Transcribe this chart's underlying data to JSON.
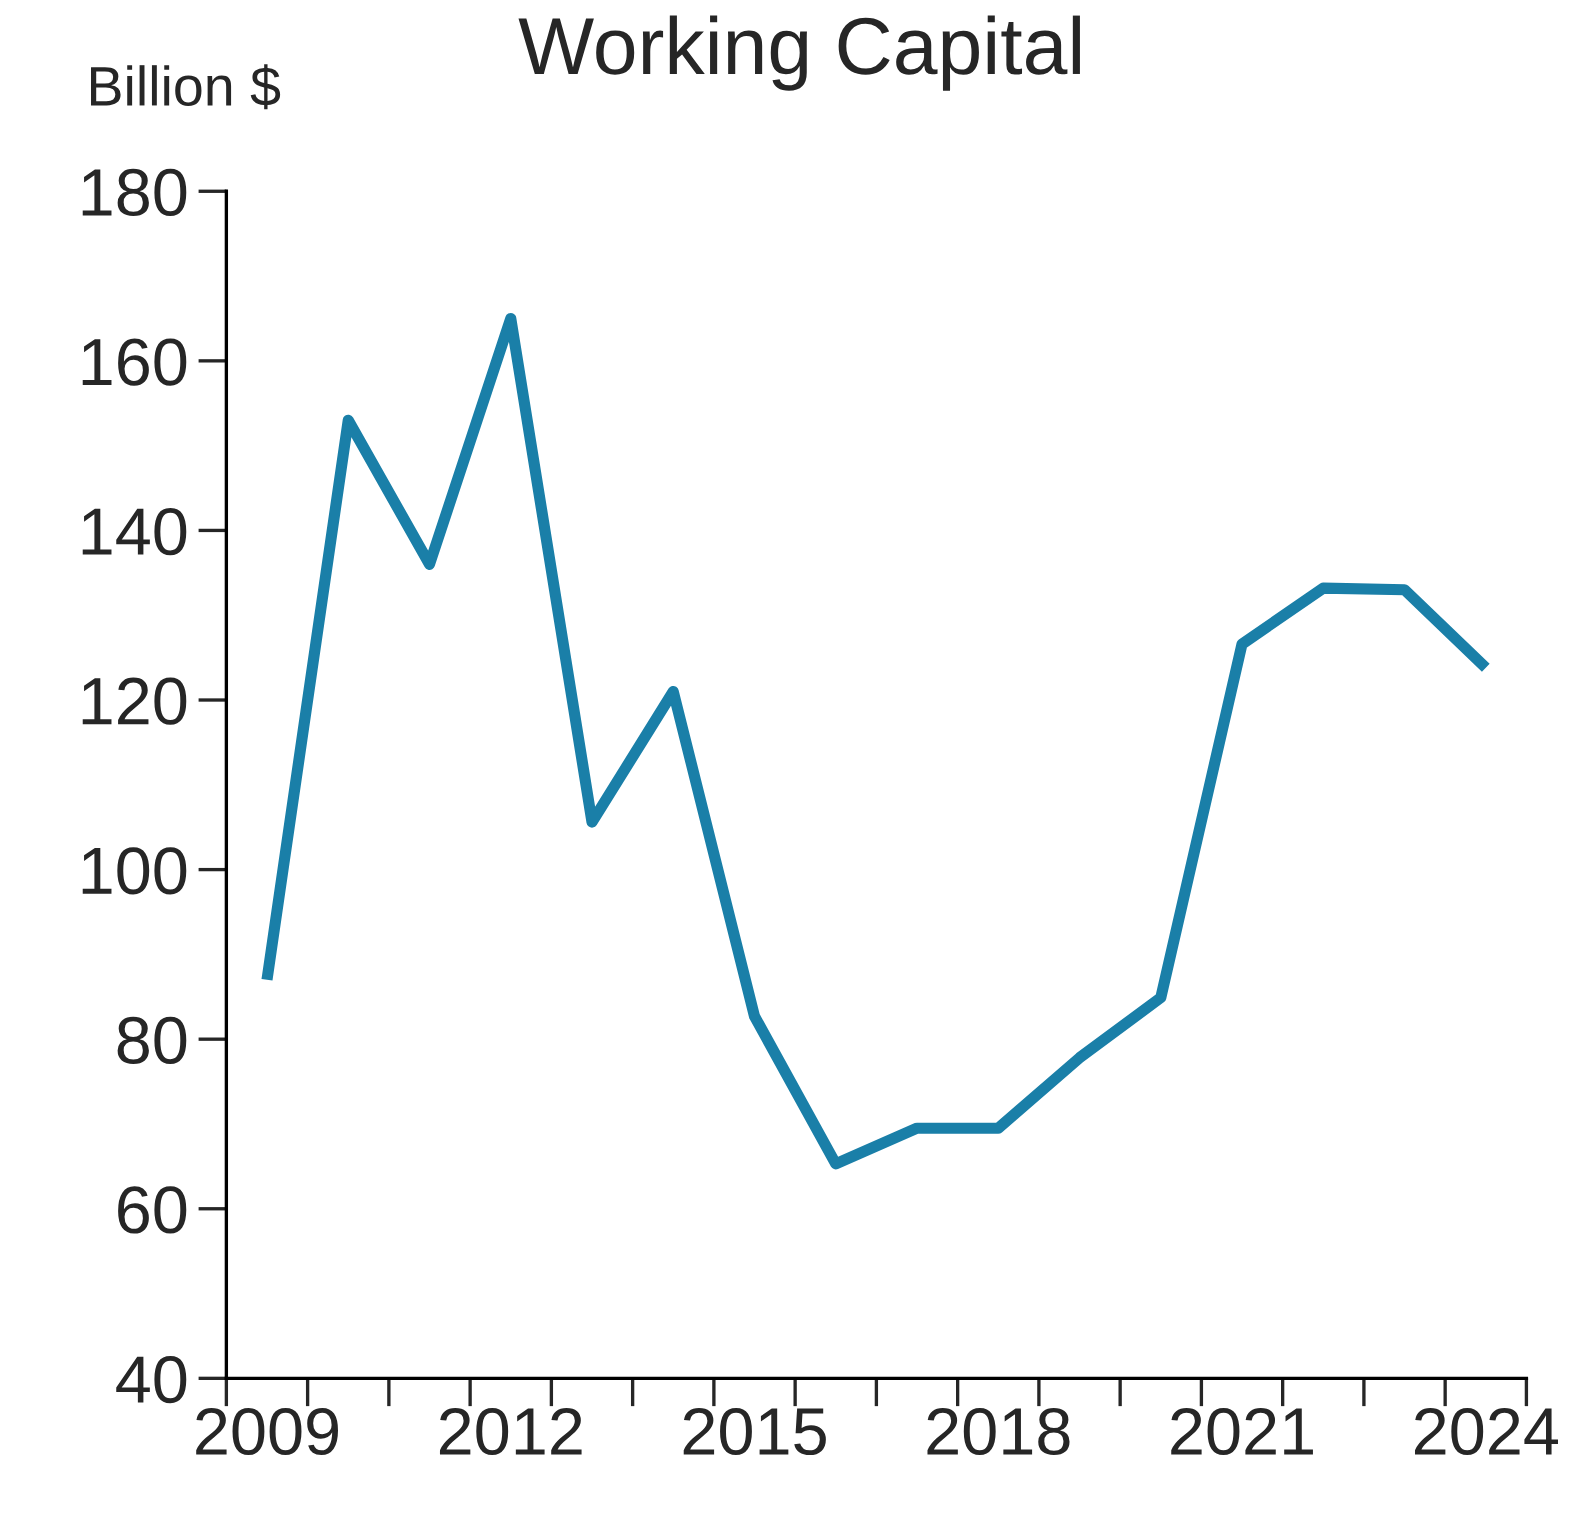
{
  "chart_data": {
    "type": "line",
    "title": "Working Capital",
    "ylabel": "Billion $",
    "categories": [
      "2009",
      null,
      null,
      "2012",
      null,
      null,
      "2015",
      null,
      null,
      "2018",
      null,
      null,
      "2021",
      null,
      null,
      "2024"
    ],
    "series": [
      {
        "color": "#1a7fa8",
        "values": [
          87,
          153,
          136,
          165,
          105.6,
          121,
          82.7,
          65.3,
          69.5,
          69.5,
          77.8,
          84.9,
          126.6,
          133.2,
          133,
          123.8
        ]
      }
    ],
    "ylim": [
      40,
      180
    ],
    "yticks": [
      40,
      60,
      80,
      100,
      120,
      140,
      160,
      180
    ],
    "grid": false,
    "legend": false,
    "marker": "none",
    "line_style": "solid"
  }
}
